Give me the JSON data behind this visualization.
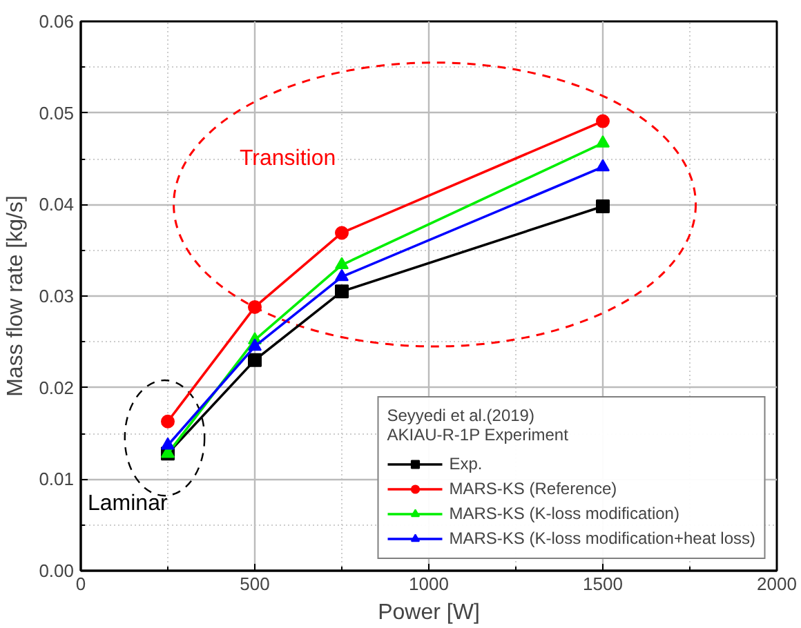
{
  "chart_data": {
    "type": "line",
    "xlabel": "Power [W]",
    "ylabel": "Mass flow rate [kg/s]",
    "legend_title": "Seyyedi et al.(2019)\nAKIAU-R-1P Experiment",
    "x": [
      250,
      500,
      750,
      1500
    ],
    "series": [
      {
        "name": "Exp.",
        "color": "#000000",
        "marker": "square",
        "values": [
          0.0128,
          0.023,
          0.0305,
          0.0398
        ]
      },
      {
        "name": "MARS-KS (Reference)",
        "color": "#ff0000",
        "marker": "circle",
        "values": [
          0.0163,
          0.0288,
          0.0369,
          0.0491
        ]
      },
      {
        "name": "MARS-KS (K-loss modification)",
        "color": "#00ee00",
        "marker": "triangle",
        "values": [
          0.0128,
          0.0252,
          0.0334,
          0.0467
        ]
      },
      {
        "name": "MARS-KS (K-loss modification+heat loss)",
        "color": "#0000ff",
        "marker": "triangle",
        "values": [
          0.0137,
          0.0245,
          0.0321,
          0.0441
        ]
      }
    ],
    "xlim": [
      0,
      2000
    ],
    "ylim": [
      0,
      0.06
    ],
    "xticks": [
      0,
      500,
      1000,
      1500,
      2000
    ],
    "yticks": [
      {
        "value": 0,
        "label": "0.00"
      },
      {
        "value": 0.01,
        "label": "0.01"
      },
      {
        "value": 0.02,
        "label": "0.02"
      },
      {
        "value": 0.03,
        "label": "0.03"
      },
      {
        "value": 0.04,
        "label": "0.04"
      },
      {
        "value": 0.05,
        "label": "0.05"
      },
      {
        "value": 0.06,
        "label": "0.06"
      }
    ],
    "grid": true,
    "legend": "bottom right",
    "line_style": "solid",
    "annotations": [
      "Transition",
      "Laminar"
    ]
  }
}
